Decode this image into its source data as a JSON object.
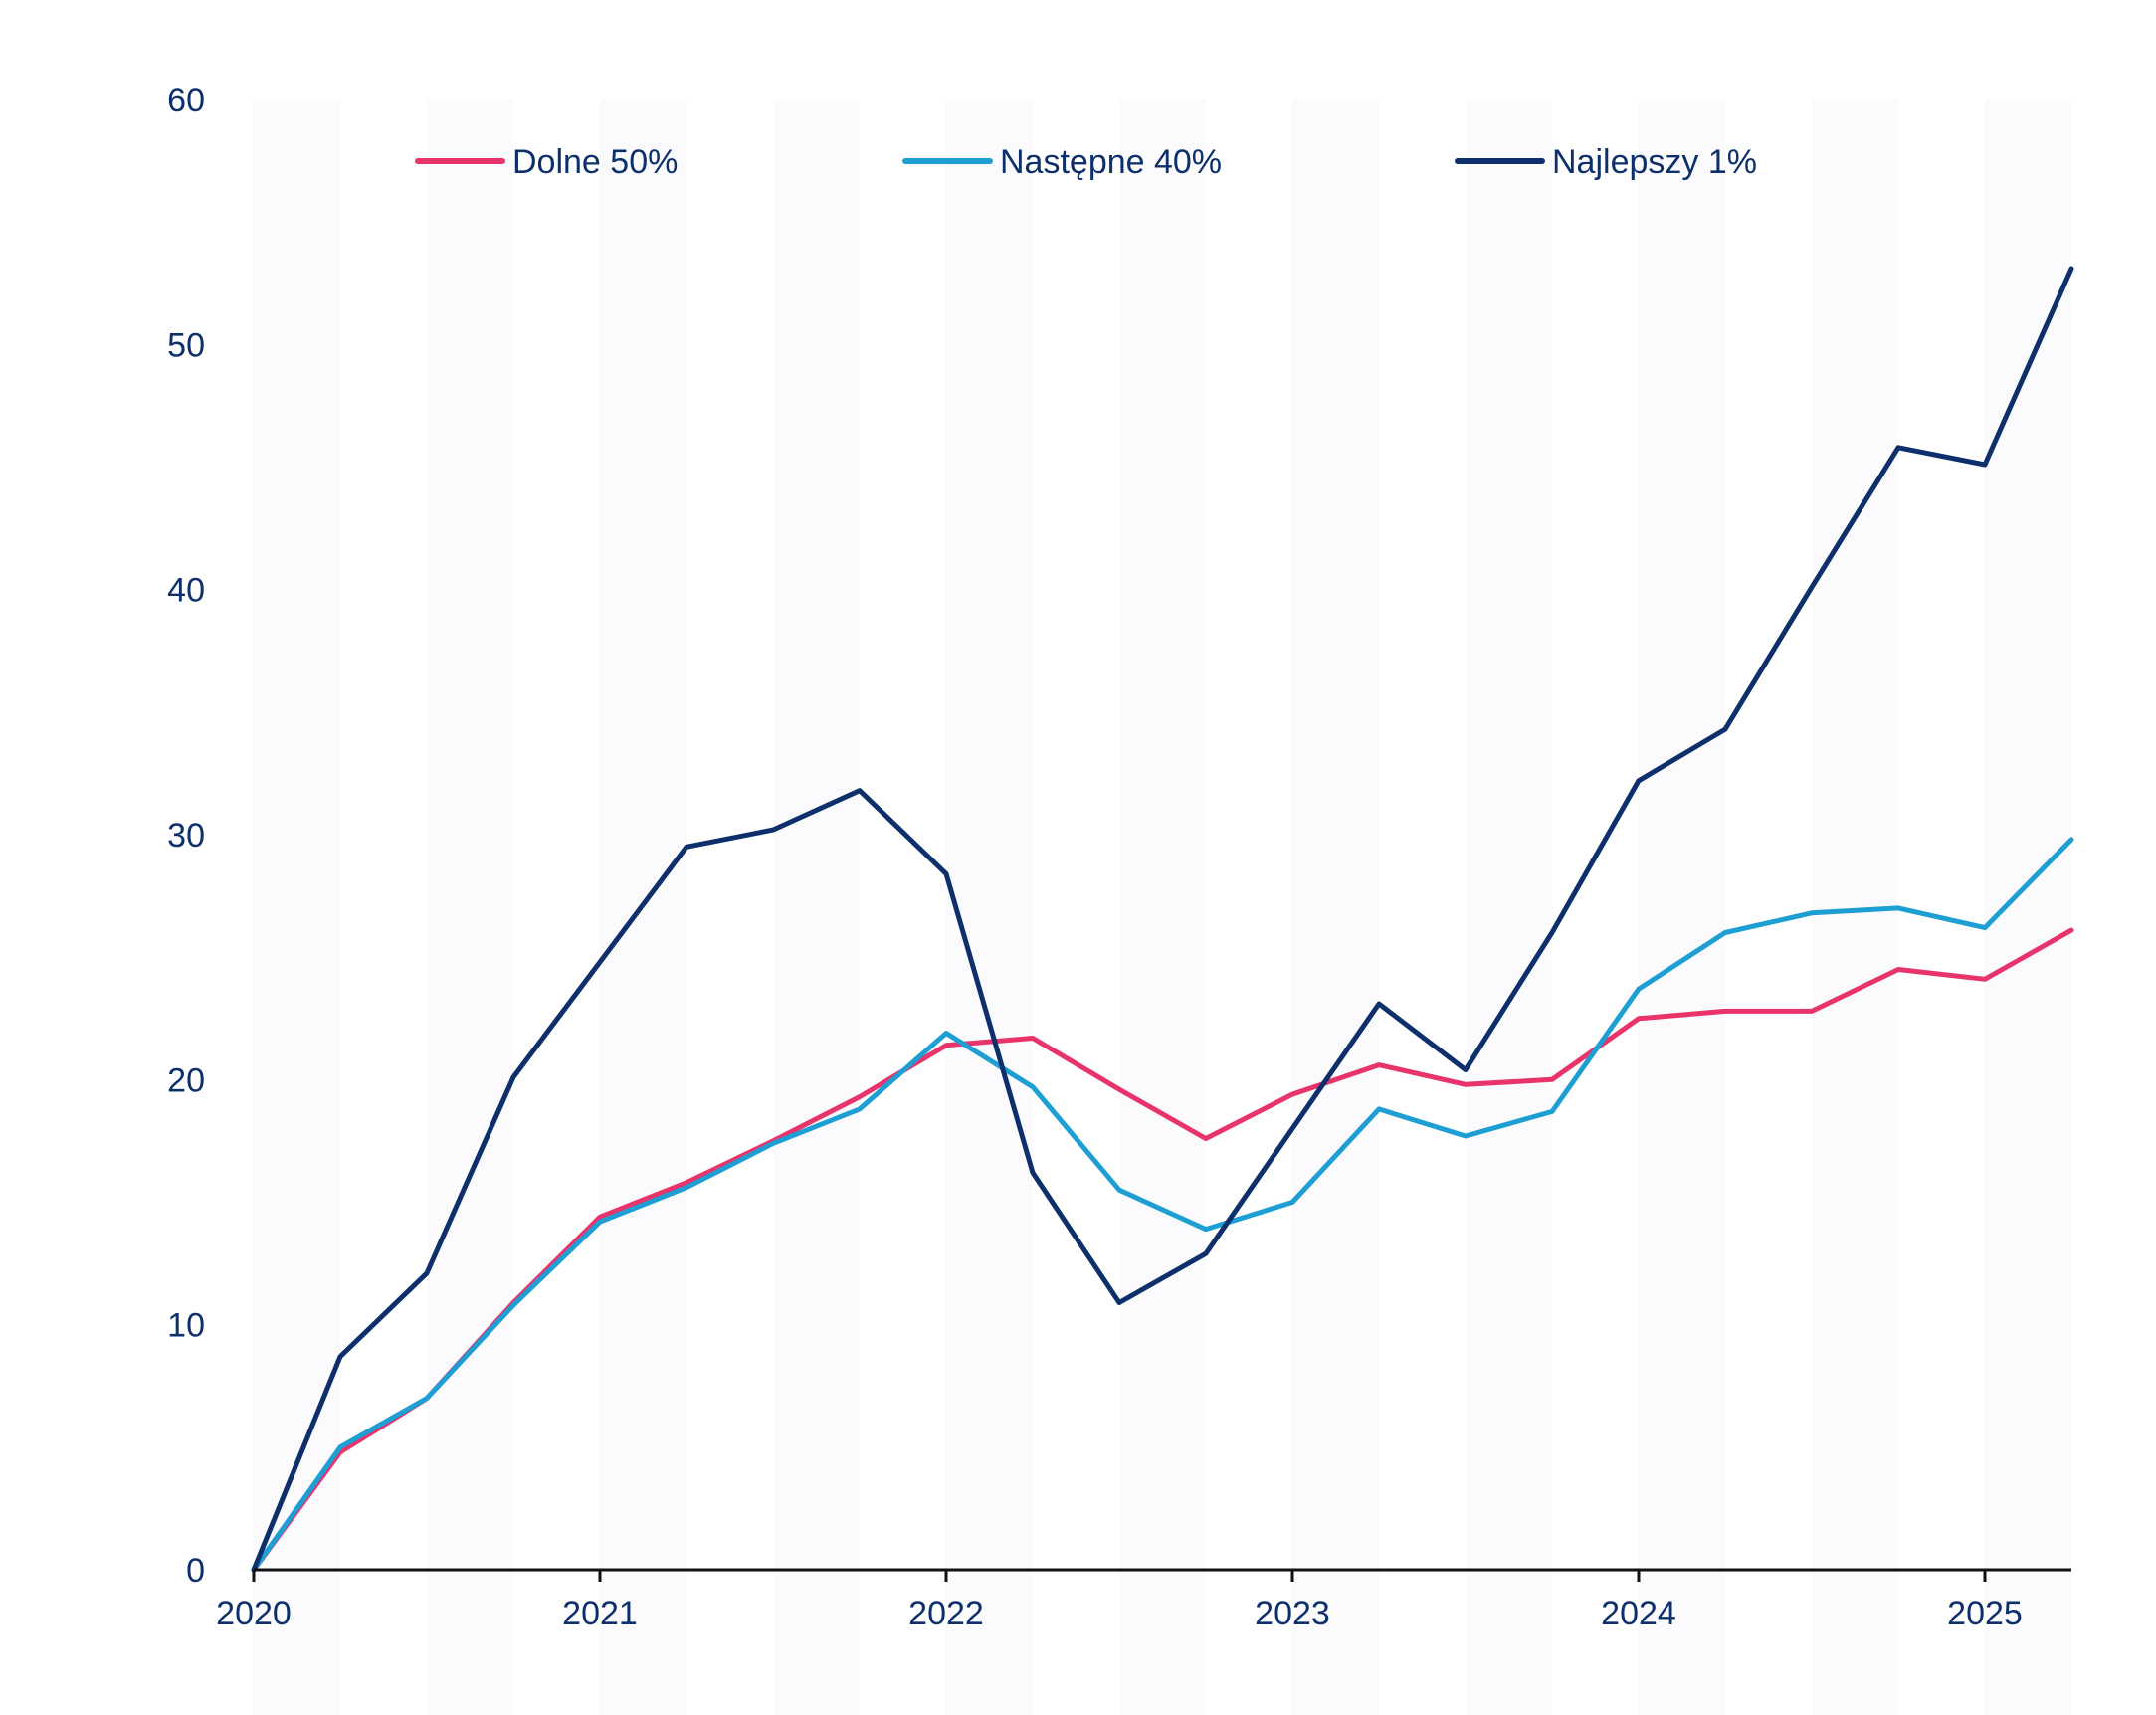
{
  "chart_data": {
    "type": "line",
    "x_start": 2020.0,
    "x_step": 0.25,
    "xlim": [
      2020,
      2025.25
    ],
    "ylim": [
      0,
      60
    ],
    "xticks": [
      "2020",
      "2021",
      "2022",
      "2023",
      "2024",
      "2025"
    ],
    "yticks": [
      "0",
      "10",
      "20",
      "30",
      "40",
      "50",
      "60"
    ],
    "grid": false,
    "legend_placement": "top",
    "text_color": "#0d2f6b",
    "axis_color": "#111111",
    "series": [
      {
        "name": "Dolne 50%",
        "color": "#e8336b",
        "values": [
          0,
          4.8,
          7.0,
          10.9,
          14.4,
          15.8,
          17.5,
          19.3,
          21.4,
          21.7,
          19.6,
          17.6,
          19.4,
          20.6,
          19.8,
          20.0,
          22.5,
          22.8,
          22.8,
          24.5,
          24.1,
          26.1
        ]
      },
      {
        "name": "Następne 40%",
        "color": "#1e9fd4",
        "values": [
          0,
          5.0,
          7.0,
          10.8,
          14.2,
          15.6,
          17.4,
          18.8,
          21.9,
          19.7,
          15.5,
          13.9,
          15.0,
          18.8,
          17.7,
          18.7,
          23.7,
          26.0,
          26.8,
          27.0,
          26.2,
          29.8
        ]
      },
      {
        "name": "Najlepszy 1%",
        "color": "#0d2f6b",
        "values": [
          0,
          8.7,
          12.1,
          20.1,
          24.8,
          29.5,
          30.2,
          31.8,
          28.4,
          16.2,
          10.9,
          12.9,
          18.0,
          23.1,
          20.4,
          26.0,
          32.2,
          34.3,
          40.1,
          45.8,
          45.1,
          53.1
        ]
      }
    ]
  }
}
